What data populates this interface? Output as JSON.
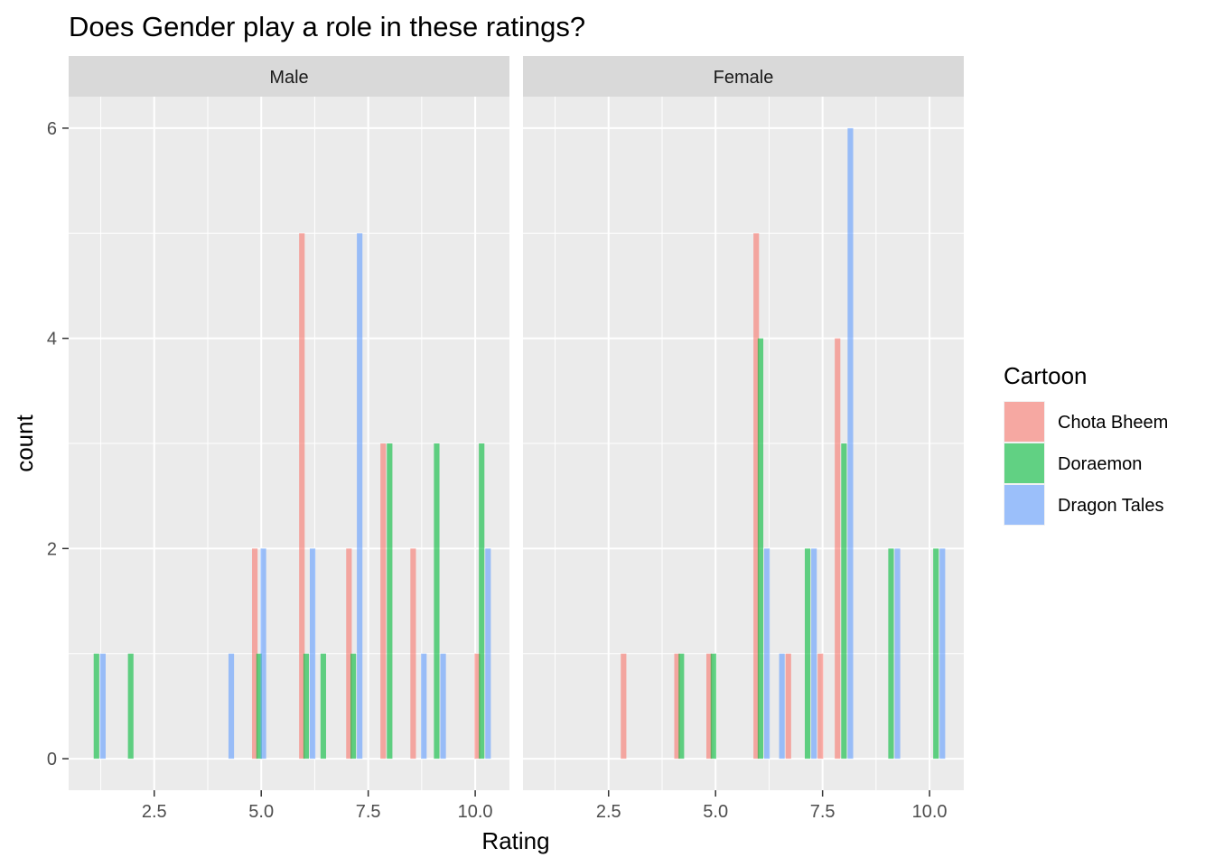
{
  "chart_data": {
    "type": "bar",
    "title": "Does Gender play a role in these ratings?",
    "xlabel": "Rating",
    "ylabel": "count",
    "xlim": [
      0.5,
      10.8
    ],
    "ylim": [
      -0.3,
      6.3
    ],
    "x_ticks": [
      2.5,
      5.0,
      7.5,
      10.0
    ],
    "x_tick_labels": [
      "2.5",
      "5.0",
      "7.5",
      "10.0"
    ],
    "y_ticks": [
      0,
      2,
      4,
      6
    ],
    "y_tick_labels": [
      "0",
      "2",
      "4",
      "6"
    ],
    "grid": true,
    "bar_width": 0.13,
    "legend": {
      "title": "Cartoon",
      "position": "right",
      "items": [
        {
          "name": "Chota Bheem",
          "color": "#F8766D"
        },
        {
          "name": "Doraemon",
          "color": "#00BA38"
        },
        {
          "name": "Dragon Tales",
          "color": "#619CFF"
        }
      ]
    },
    "panels": [
      {
        "label": "Male",
        "series": [
          {
            "name": "Chota Bheem",
            "x": [
              4.85,
              5.95,
              7.05,
              7.85,
              8.55,
              10.05
            ],
            "values": [
              2,
              5,
              2,
              3,
              2,
              1
            ]
          },
          {
            "name": "Doraemon",
            "x": [
              1.15,
              1.95,
              4.95,
              6.05,
              6.45,
              7.15,
              8.0,
              9.1,
              10.15
            ],
            "values": [
              1,
              1,
              1,
              1,
              1,
              1,
              3,
              3,
              3
            ]
          },
          {
            "name": "Dragon Tales",
            "x": [
              1.3,
              4.3,
              5.05,
              6.2,
              7.3,
              8.8,
              9.25,
              10.3
            ],
            "values": [
              1,
              1,
              2,
              2,
              5,
              1,
              1,
              2
            ]
          }
        ]
      },
      {
        "label": "Female",
        "series": [
          {
            "name": "Chota Bheem",
            "x": [
              2.85,
              4.1,
              4.85,
              5.95,
              6.7,
              7.45,
              7.85
            ],
            "values": [
              1,
              1,
              1,
              5,
              1,
              1,
              4
            ]
          },
          {
            "name": "Doraemon",
            "x": [
              4.2,
              4.95,
              6.05,
              7.15,
              8.0,
              9.1,
              10.15
            ],
            "values": [
              1,
              1,
              4,
              2,
              3,
              2,
              2
            ]
          },
          {
            "name": "Dragon Tales",
            "x": [
              6.2,
              6.55,
              7.3,
              8.15,
              9.25,
              10.3
            ],
            "values": [
              2,
              1,
              2,
              6,
              2,
              2
            ]
          }
        ]
      }
    ]
  }
}
